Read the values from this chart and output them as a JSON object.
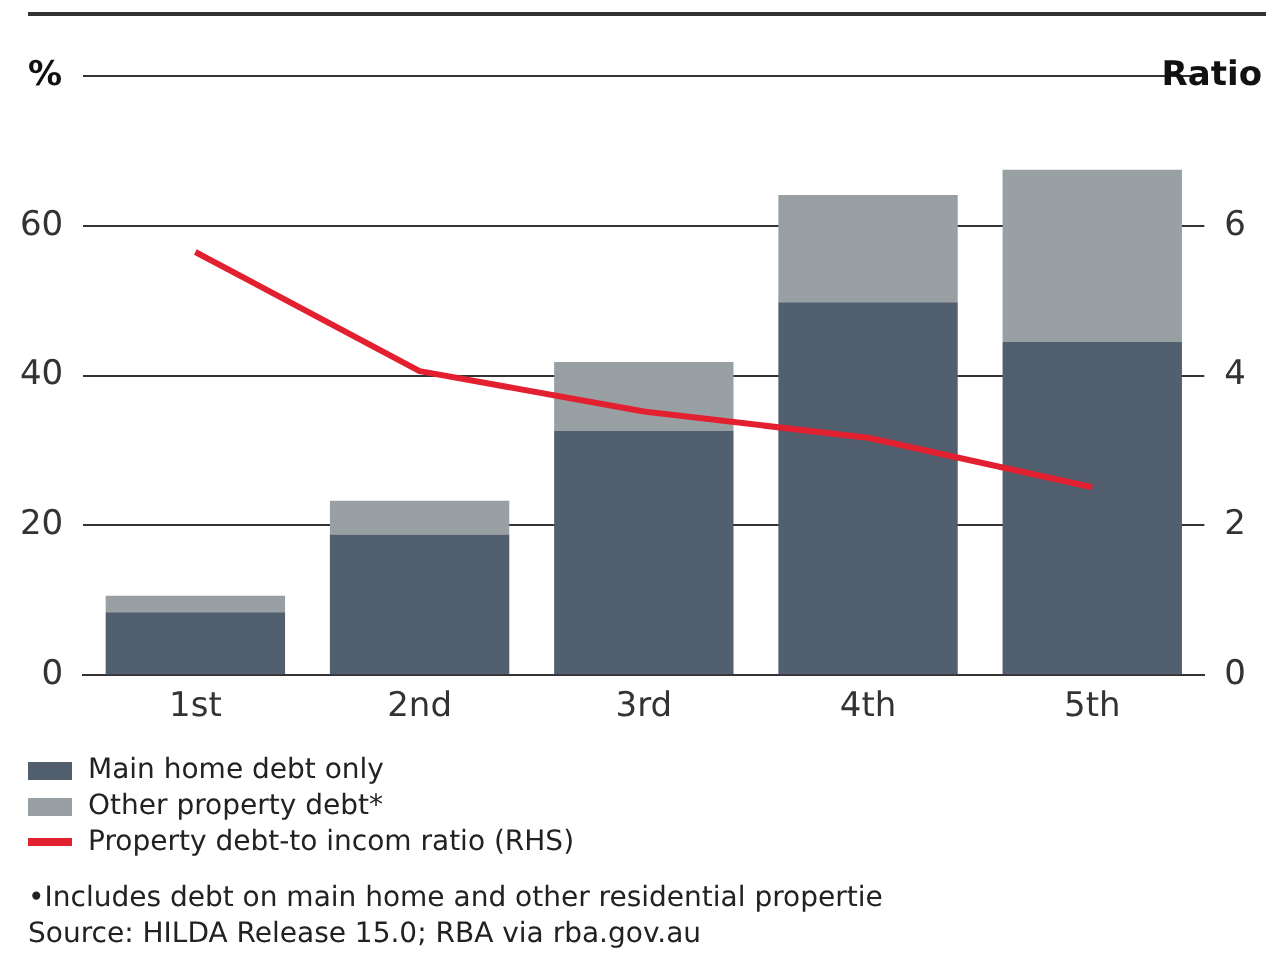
{
  "chart_data": {
    "type": "bar",
    "stacked": true,
    "categories": [
      "1st",
      "2nd",
      "3rd",
      "4th",
      "5th"
    ],
    "series": [
      {
        "name": "Main home debt only",
        "color": "#525f6e",
        "values": [
          8.4,
          18.8,
          32.6,
          49.8,
          44.5
        ]
      },
      {
        "name": "Other property debt*",
        "color": "#98a0a4",
        "values": [
          2.2,
          4.5,
          9.2,
          14.3,
          23.0
        ]
      },
      {
        "name": "Property debt-to incom ratio (RHS)",
        "type": "line",
        "axis": "y2",
        "color": "#e3202f",
        "values": [
          5.65,
          4.06,
          3.52,
          3.17,
          2.51
        ]
      }
    ],
    "ylabel": "%",
    "y2label": "Ratio",
    "ylim": [
      0,
      80
    ],
    "yticks": [
      0,
      20,
      40,
      60,
      {
        "value": 80,
        "label": null
      }
    ],
    "y2lim": [
      0,
      8
    ],
    "y2ticks": [
      0,
      2,
      4,
      6
    ],
    "grid": "y",
    "legend": "bottom",
    "marker": "none",
    "annotations": [
      "•Includes debt on main home and other residential propertie",
      "Source: HILDA Release 15.0; RBA via rba.gov.au"
    ]
  }
}
